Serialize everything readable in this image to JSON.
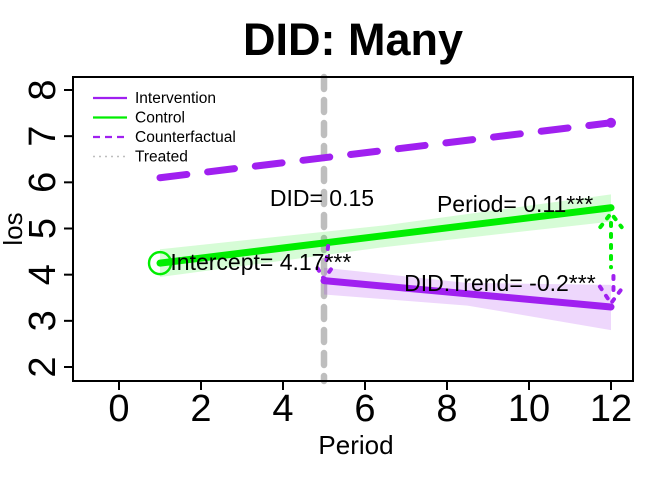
{
  "chart_data": {
    "type": "line",
    "title": "DID: Many",
    "xlabel": "Period",
    "ylabel": "los",
    "xlim": [
      -0.6,
      12.6
    ],
    "ylim": [
      1.8,
      8.2
    ],
    "x_ticks": [
      "0",
      "2",
      "4",
      "6",
      "8",
      "10",
      "12"
    ],
    "y_ticks": [
      "2",
      "3",
      "4",
      "5",
      "6",
      "7",
      "8"
    ],
    "grid": false,
    "colors": {
      "purple": "#A020F0",
      "green": "#00EE00",
      "gray": "#BEBEBE",
      "purple_band": "rgba(160,32,240,0.18)",
      "green_band": "rgba(0,238,0,0.16)",
      "black": "#000000"
    },
    "vline": {
      "x": 5,
      "color": "#BEBEBE",
      "style": "dashed"
    },
    "series": [
      {
        "name": "Counterfactual",
        "color": "#A020F0",
        "style": "dashed",
        "width": 7,
        "x": [
          1,
          12
        ],
        "y": [
          6.1,
          7.29
        ],
        "end_dot": true
      },
      {
        "name": "Control",
        "color": "#00EE00",
        "style": "solid",
        "width": 7,
        "x": [
          1,
          12
        ],
        "y": [
          4.25,
          5.45
        ],
        "band": {
          "x": [
            1,
            6.5,
            12
          ],
          "upper": [
            4.55,
            5.07,
            5.74
          ],
          "lower": [
            3.95,
            4.6,
            5.15
          ],
          "color": "rgba(0,238,0,0.16)"
        },
        "marker": {
          "type": "open-circle",
          "x": 1,
          "y": 4.25
        }
      },
      {
        "name": "Intervention",
        "color": "#A020F0",
        "style": "solid",
        "width": 7,
        "x": [
          5,
          12
        ],
        "y": [
          3.87,
          3.3
        ],
        "band": {
          "x": [
            5,
            8.5,
            12
          ],
          "upper": [
            4.15,
            3.82,
            3.78
          ],
          "lower": [
            3.57,
            3.33,
            2.8
          ],
          "color": "rgba(160,32,240,0.18)"
        }
      },
      {
        "name": "Treated",
        "color": "#BEBEBE",
        "style": "dotted",
        "width": 1.6,
        "x": [],
        "y": []
      }
    ],
    "connectors": [
      {
        "color": "#00EE00",
        "points": [
          [
            11.74,
            5.03
          ],
          [
            12.0,
            5.33
          ],
          [
            12.26,
            5.03
          ]
        ]
      },
      {
        "color": "#00EE00",
        "points": [
          [
            12.0,
            5.12
          ],
          [
            12.0,
            4.16
          ]
        ]
      },
      {
        "color": "#A020F0",
        "points": [
          [
            12.06,
            3.97
          ],
          [
            12.06,
            3.6
          ]
        ]
      },
      {
        "color": "#A020F0",
        "points": [
          [
            11.73,
            3.74
          ],
          [
            12.0,
            3.38
          ],
          [
            12.3,
            3.74
          ]
        ]
      },
      {
        "color": "#A020F0",
        "points": [
          [
            5.1,
            4.62
          ],
          [
            5.05,
            4.22
          ]
        ]
      },
      {
        "color": "#A020F0",
        "points": [
          [
            4.84,
            4.14
          ],
          [
            5.0,
            3.9
          ],
          [
            5.22,
            4.18
          ]
        ]
      }
    ],
    "annotations": [
      {
        "text": "DID= 0.15",
        "x": 4.95,
        "y": 5.49
      },
      {
        "text": "Period= 0.11***",
        "x": 9.66,
        "y": 5.36
      },
      {
        "text": "Intercept= 4.17***",
        "x": 3.46,
        "y": 4.1
      },
      {
        "text": "DID.Trend= -0.2***",
        "x": 9.29,
        "y": 3.65
      }
    ],
    "legend": {
      "position": "top-left",
      "items": [
        {
          "label": "Intervention",
          "color": "#A020F0",
          "style": "solid"
        },
        {
          "label": "Control",
          "color": "#00EE00",
          "style": "solid"
        },
        {
          "label": "Counterfactual",
          "color": "#A020F0",
          "style": "dashed"
        },
        {
          "label": "Treated",
          "color": "#BEBEBE",
          "style": "dotted"
        }
      ]
    }
  }
}
